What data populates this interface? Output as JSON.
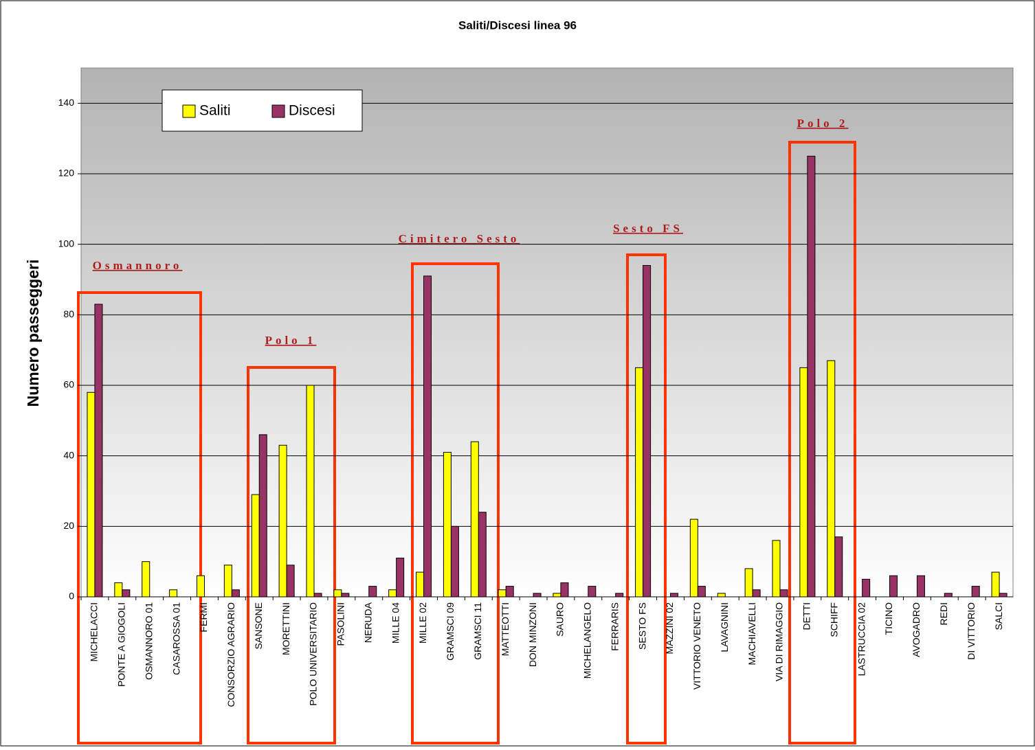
{
  "chart_data": {
    "type": "bar",
    "title": "Saliti/Discesi linea 96",
    "y_label": "Numero passeggeri",
    "categories": [
      "MICHELACCI",
      "PONTE A GIOGOLI",
      "OSMANNORO 01",
      "CASAROSSA 01",
      "FERMI",
      "CONSORZIO AGRARIO",
      "SANSONE",
      "MORETTINI",
      "POLO UNIVERSITARIO",
      "PASOLINI",
      "NERUDA",
      "MILLE 04",
      "MILLE 02",
      "GRAMSCI 09",
      "GRAMSCI 11",
      "MATTEOTTI",
      "DON MINZONI",
      "SAURO",
      "MICHELANGELO",
      "FERRARIS",
      "SESTO FS",
      "MAZZINI 02",
      "VITTORIO VENETO",
      "LAVAGNINI",
      "MACHIAVELLI",
      "VIA DI RIMAGGIO",
      "DETTI",
      "SCHIFF",
      "LASTRUCCIA 02",
      "TICINO",
      "AVOGADRO",
      "REDI",
      "DI VITTORIO",
      "SALCI"
    ],
    "series": [
      {
        "name": "Saliti",
        "color": "#ffff00",
        "values": [
          58,
          4,
          10,
          2,
          6,
          9,
          29,
          43,
          60,
          2,
          0,
          2,
          7,
          41,
          44,
          2,
          0,
          1,
          0,
          0,
          65,
          0,
          22,
          1,
          8,
          16,
          65,
          67,
          0,
          0,
          0,
          0,
          0,
          7
        ]
      },
      {
        "name": "Discesi",
        "color": "#993366",
        "values": [
          83,
          2,
          0,
          0,
          0,
          2,
          46,
          9,
          1,
          1,
          3,
          11,
          91,
          20,
          24,
          3,
          1,
          4,
          3,
          1,
          94,
          1,
          3,
          0,
          2,
          2,
          125,
          17,
          5,
          6,
          6,
          1,
          3,
          1
        ]
      }
    ],
    "annotations": [
      "Osmannoro",
      "Polo 1",
      "Cimitero Sesto",
      "Sesto FS",
      "Polo 2"
    ],
    "ylim": [
      0,
      150
    ],
    "yticks": [
      0,
      20,
      40,
      60,
      80,
      100,
      120,
      140
    ],
    "grid": true,
    "legend": "top-left"
  }
}
